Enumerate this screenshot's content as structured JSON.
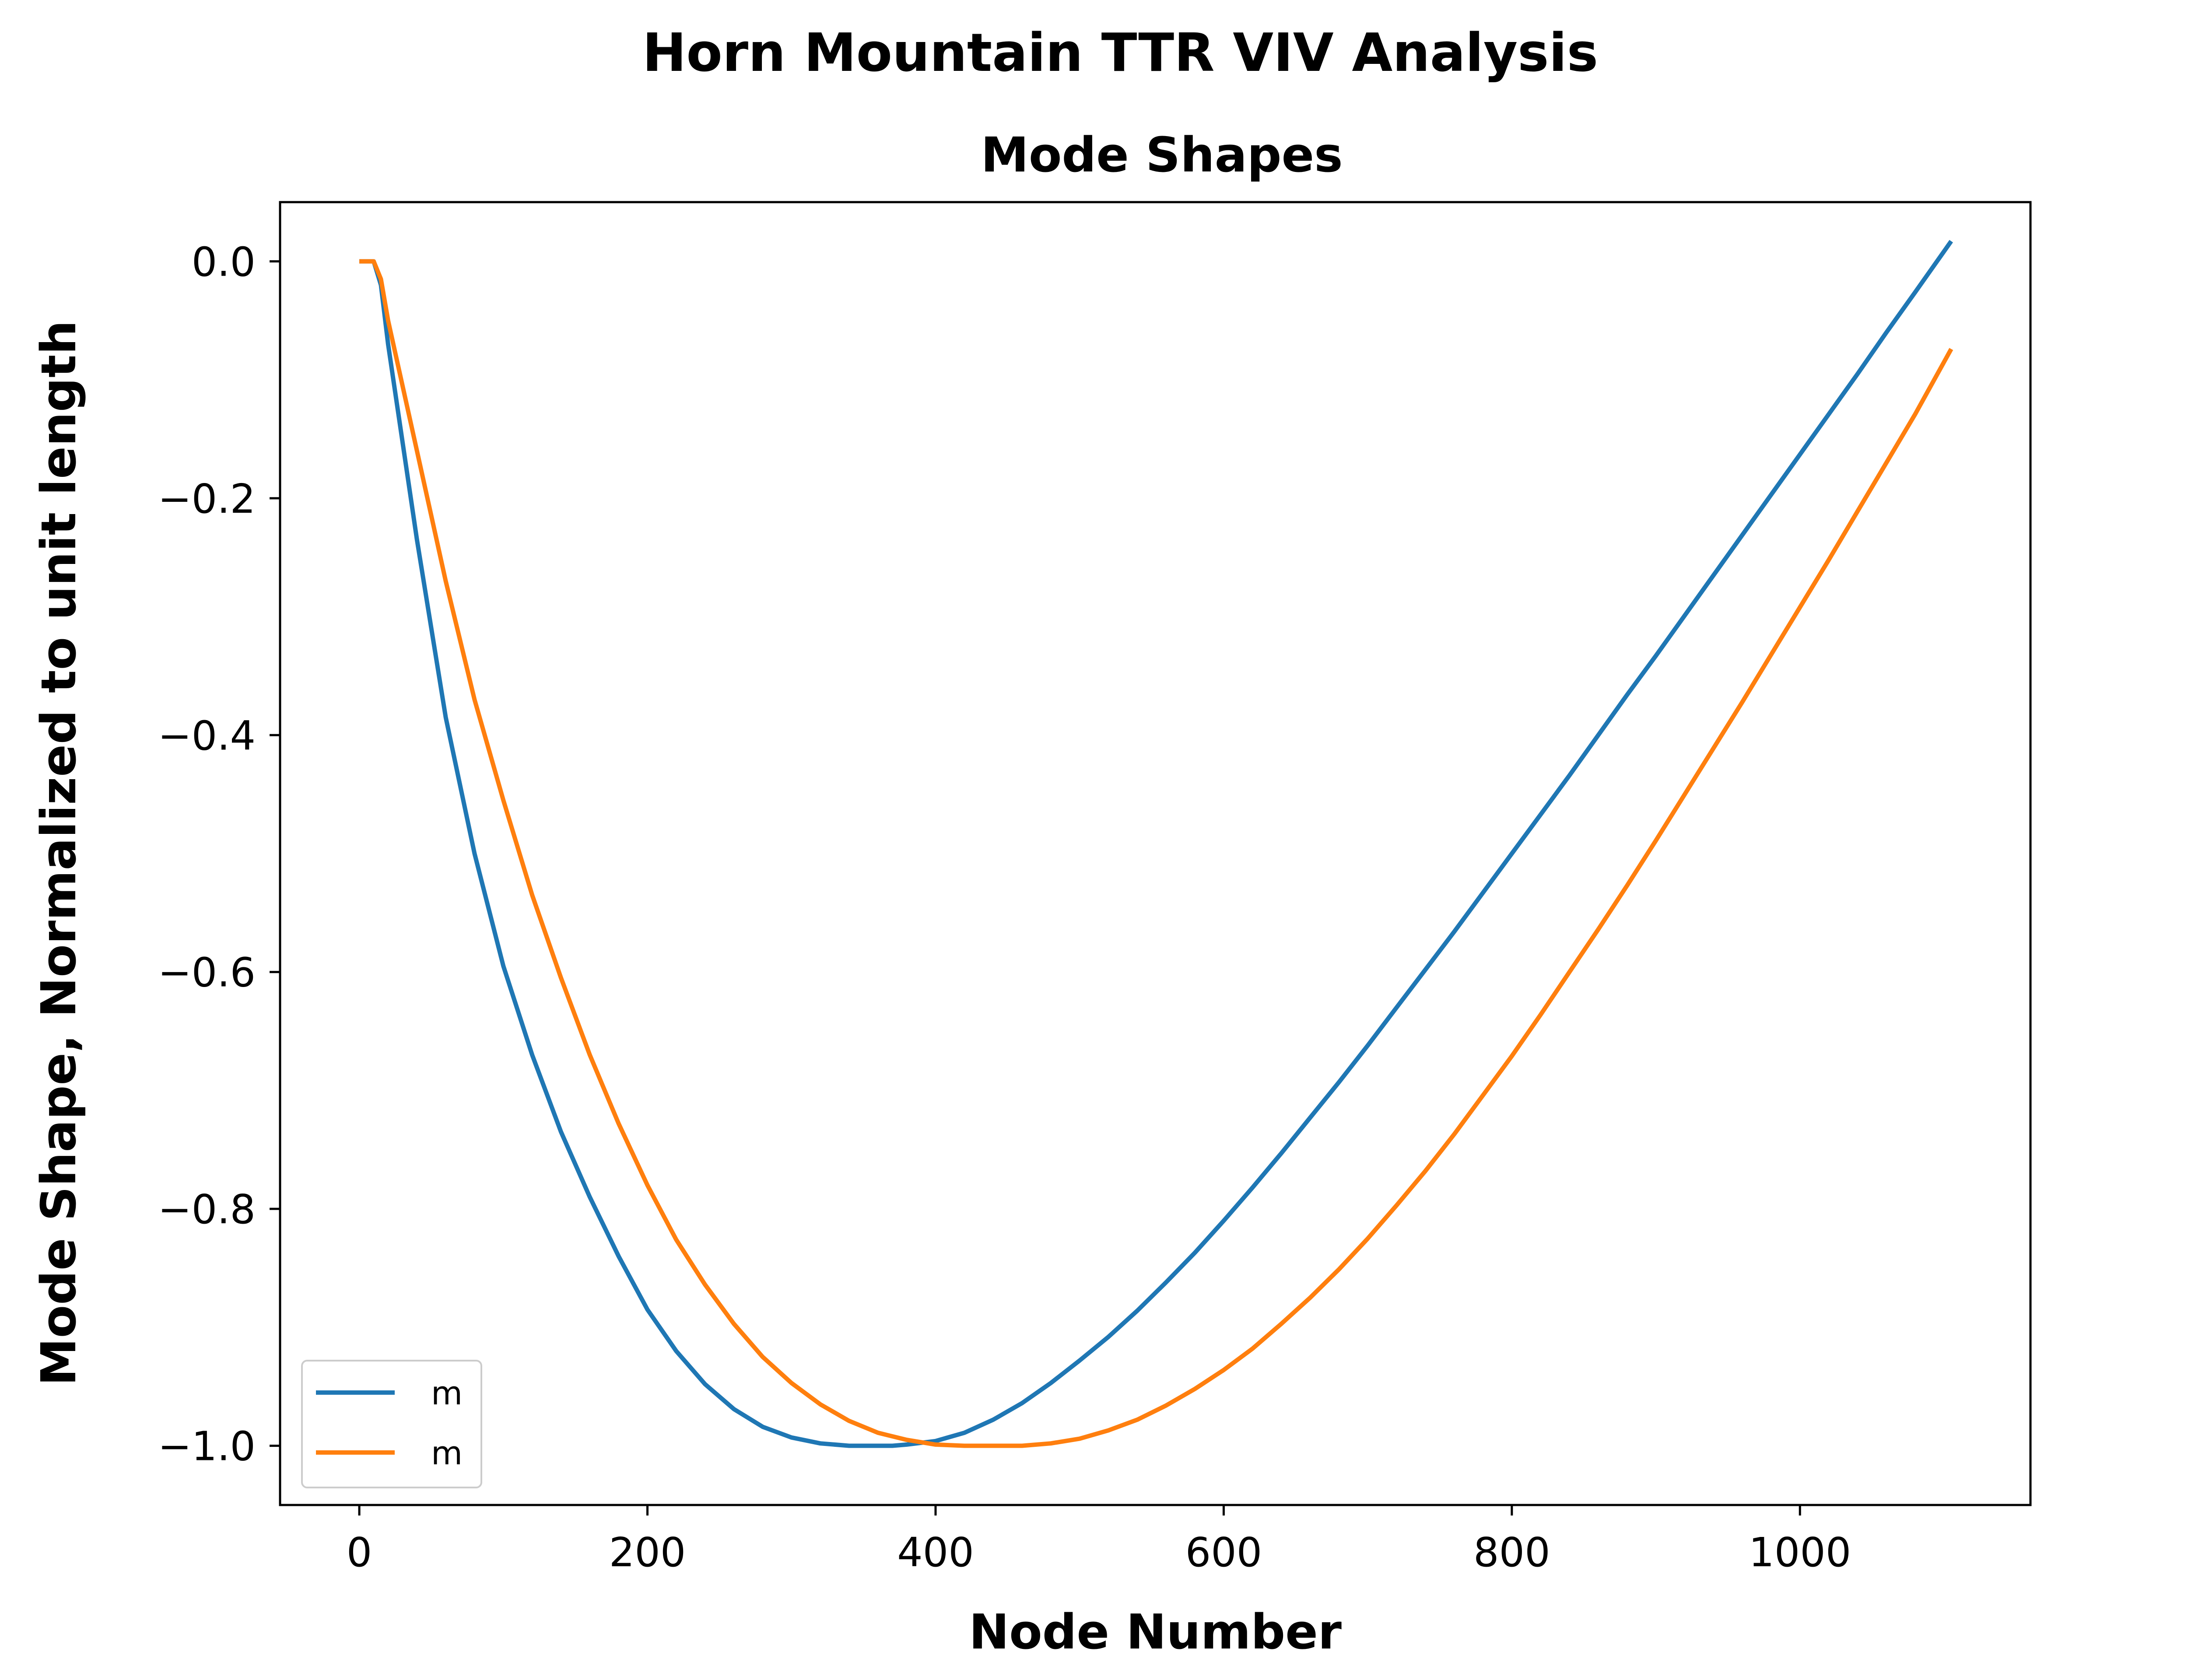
{
  "chart_data": {
    "type": "line",
    "title": "Horn Mountain TTR VIV Analysis",
    "subtitle": "Mode Shapes",
    "xlabel": "Node Number",
    "ylabel": "Mode Shape, Normalized to unit length",
    "xlim": [
      -55,
      1160
    ],
    "ylim": [
      -1.05,
      0.05
    ],
    "xticks": [
      0,
      200,
      400,
      600,
      800,
      1000
    ],
    "xtick_labels": [
      "0",
      "200",
      "400",
      "600",
      "800",
      "1000"
    ],
    "yticks": [
      0.0,
      -0.2,
      -0.4,
      -0.6,
      -0.8,
      -1.0
    ],
    "ytick_labels": [
      "0.0",
      "−0.2",
      "−0.4",
      "−0.6",
      "−0.8",
      "−1.0"
    ],
    "grid": false,
    "legend_position": "lower-left",
    "series": [
      {
        "name": "m",
        "color": "#1f77b4",
        "x": [
          0,
          5,
          10,
          15,
          20,
          40,
          60,
          80,
          100,
          120,
          140,
          160,
          180,
          200,
          220,
          240,
          260,
          280,
          300,
          320,
          340,
          360,
          370,
          380,
          400,
          420,
          440,
          460,
          480,
          500,
          520,
          540,
          560,
          580,
          600,
          620,
          640,
          660,
          680,
          700,
          720,
          740,
          760,
          780,
          800,
          820,
          840,
          860,
          880,
          900,
          920,
          940,
          960,
          980,
          1000,
          1020,
          1040,
          1060,
          1080,
          1105
        ],
        "y": [
          0.0,
          0.0,
          0.0,
          -0.02,
          -0.07,
          -0.235,
          -0.385,
          -0.5,
          -0.595,
          -0.67,
          -0.735,
          -0.79,
          -0.84,
          -0.885,
          -0.92,
          -0.948,
          -0.969,
          -0.984,
          -0.993,
          -0.998,
          -1.0,
          -1.0,
          -1.0,
          -0.999,
          -0.996,
          -0.989,
          -0.978,
          -0.964,
          -0.947,
          -0.928,
          -0.908,
          -0.886,
          -0.862,
          -0.837,
          -0.81,
          -0.782,
          -0.753,
          -0.723,
          -0.693,
          -0.662,
          -0.63,
          -0.598,
          -0.566,
          -0.533,
          -0.5,
          -0.467,
          -0.434,
          -0.4,
          -0.366,
          -0.333,
          -0.299,
          -0.265,
          -0.231,
          -0.197,
          -0.163,
          -0.129,
          -0.095,
          -0.06,
          -0.026,
          0.017
        ]
      },
      {
        "name": "m",
        "color": "#ff7f0e",
        "x": [
          0,
          5,
          10,
          15,
          20,
          40,
          60,
          80,
          100,
          120,
          140,
          160,
          180,
          200,
          220,
          240,
          260,
          280,
          300,
          320,
          340,
          360,
          380,
          400,
          420,
          440,
          460,
          480,
          500,
          520,
          540,
          560,
          580,
          600,
          620,
          640,
          660,
          680,
          700,
          720,
          740,
          760,
          780,
          800,
          820,
          840,
          860,
          880,
          900,
          920,
          940,
          960,
          980,
          1000,
          1020,
          1040,
          1060,
          1080,
          1105
        ],
        "y": [
          0.0,
          0.0,
          0.0,
          -0.015,
          -0.05,
          -0.16,
          -0.27,
          -0.37,
          -0.455,
          -0.535,
          -0.605,
          -0.67,
          -0.728,
          -0.78,
          -0.826,
          -0.864,
          -0.897,
          -0.925,
          -0.947,
          -0.965,
          -0.979,
          -0.989,
          -0.995,
          -0.999,
          -1.0,
          -1.0,
          -1.0,
          -0.998,
          -0.994,
          -0.987,
          -0.978,
          -0.966,
          -0.952,
          -0.936,
          -0.918,
          -0.897,
          -0.875,
          -0.851,
          -0.825,
          -0.797,
          -0.768,
          -0.737,
          -0.704,
          -0.671,
          -0.636,
          -0.6,
          -0.564,
          -0.527,
          -0.489,
          -0.45,
          -0.411,
          -0.372,
          -0.332,
          -0.292,
          -0.252,
          -0.211,
          -0.17,
          -0.129,
          -0.074
        ]
      }
    ]
  }
}
